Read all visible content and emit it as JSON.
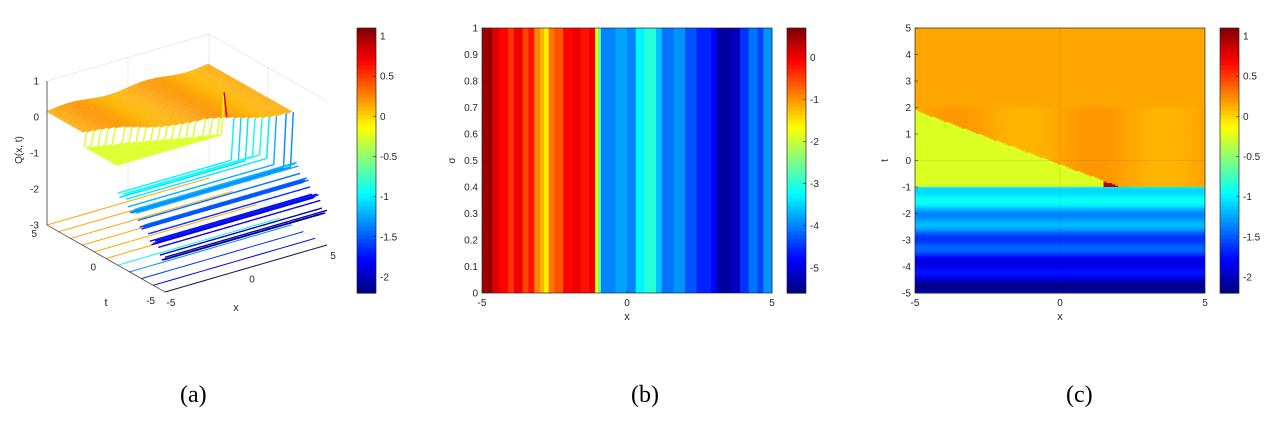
{
  "panels": [
    {
      "caption": "(a)",
      "chart_data": {
        "type": "surface3d",
        "xlabel": "x",
        "ylabel": "t",
        "zlabel": "Q(x, t)",
        "xlim": [
          -5,
          5
        ],
        "ylim": [
          -5,
          5
        ],
        "zlim": [
          -3,
          1
        ],
        "xticks": [
          "-5",
          "0",
          "5"
        ],
        "yticks": [
          "5",
          "0",
          "-5"
        ],
        "zticks": [
          "1",
          "0",
          "-1",
          "-2",
          "-3"
        ],
        "colorbar": {
          "range": [
            -2.2,
            1.1
          ],
          "ticks": [
            "1",
            "0.5",
            "0",
            "-0.5",
            "-1",
            "-1.5",
            "-2"
          ],
          "colormap": "jet"
        }
      }
    },
    {
      "caption": "(b)",
      "chart_data": {
        "type": "heatmap",
        "xlabel": "x",
        "ylabel": "σ",
        "xlim": [
          -5,
          5
        ],
        "ylim": [
          0,
          1
        ],
        "xticks": [
          "-5",
          "0",
          "5"
        ],
        "yticks": [
          "0",
          "0.1",
          "0.2",
          "0.3",
          "0.4",
          "0.5",
          "0.6",
          "0.7",
          "0.8",
          "0.9",
          "1"
        ],
        "colorbar": {
          "range": [
            -5.6,
            0.7
          ],
          "ticks": [
            "0",
            "-1",
            "-2",
            "-3",
            "-4",
            "-5"
          ],
          "colormap": "jet"
        },
        "stripes_x_start_value": [
          [
            -5,
            0.5
          ],
          [
            -4.8,
            0.6
          ],
          [
            -4.65,
            0.1
          ],
          [
            -4.4,
            -0.1
          ],
          [
            -4.1,
            -0.4
          ],
          [
            -3.9,
            0
          ],
          [
            -3.6,
            -0.5
          ],
          [
            -3.4,
            -0.2
          ],
          [
            -3.2,
            -0.9
          ],
          [
            -3.0,
            -1.2
          ],
          [
            -2.85,
            -1.6
          ],
          [
            -2.7,
            -0.8
          ],
          [
            -2.5,
            -0.6
          ],
          [
            -2.2,
            -0.1
          ],
          [
            -1.9,
            0
          ],
          [
            -1.6,
            -0.2
          ],
          [
            -1.3,
            0
          ],
          [
            -1.1,
            -1.7
          ],
          [
            -1.0,
            -2.6
          ],
          [
            -0.9,
            -4.0
          ],
          [
            -0.4,
            -3.8
          ],
          [
            0.0,
            -4.0
          ],
          [
            0.3,
            -3.3
          ],
          [
            0.6,
            -3.0
          ],
          [
            1.0,
            -3.6
          ],
          [
            1.2,
            -4.1
          ],
          [
            1.6,
            -3.9
          ],
          [
            2.0,
            -4.3
          ],
          [
            2.4,
            -4.6
          ],
          [
            2.9,
            -4.8
          ],
          [
            3.1,
            -5.4
          ],
          [
            3.6,
            -5.2
          ],
          [
            3.9,
            -4.5
          ],
          [
            4.2,
            -4.1
          ],
          [
            4.5,
            -4.4
          ],
          [
            4.7,
            -3.9
          ]
        ]
      }
    },
    {
      "caption": "(c)",
      "chart_data": {
        "type": "heatmap",
        "xlabel": "x",
        "ylabel": "t",
        "xlim": [
          -5,
          5
        ],
        "ylim": [
          -5,
          5
        ],
        "xticks": [
          "-5",
          "0",
          "5"
        ],
        "yticks": [
          "-5",
          "-4",
          "-3",
          "-2",
          "-1",
          "0",
          "1",
          "2",
          "3",
          "4",
          "5"
        ],
        "colorbar": {
          "range": [
            -2.2,
            1.1
          ],
          "ticks": [
            "1",
            "0.5",
            "0",
            "-0.5",
            "-1",
            "-1.5",
            "-2"
          ],
          "colormap": "jet"
        }
      }
    }
  ]
}
